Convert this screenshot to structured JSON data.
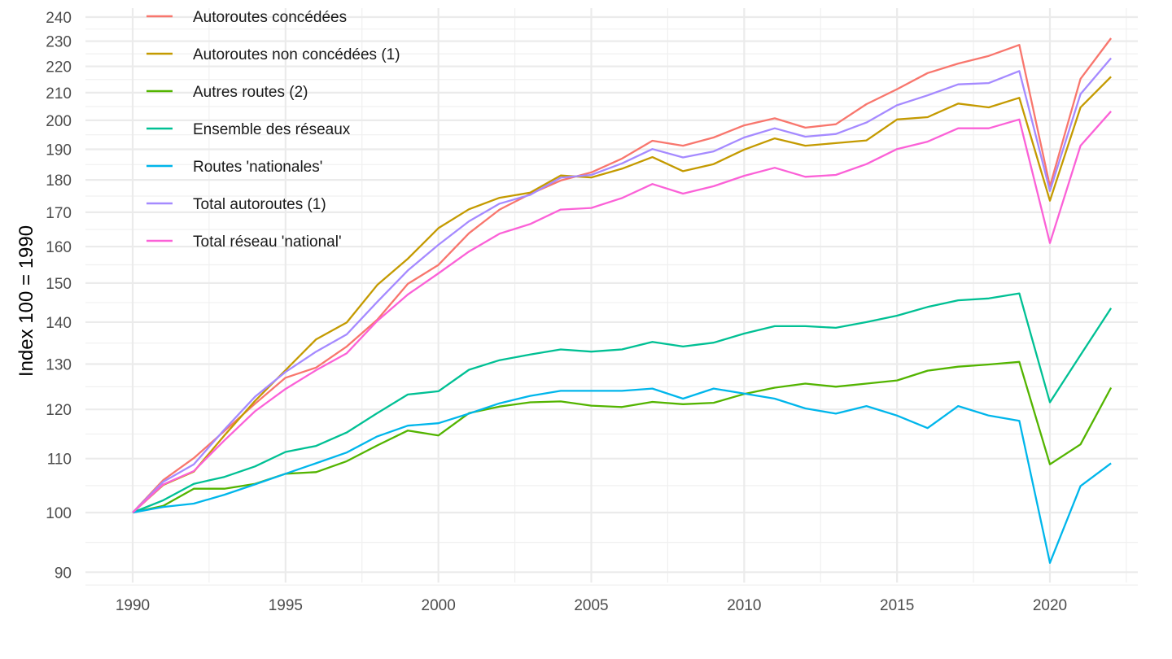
{
  "chart_data": {
    "type": "line",
    "title": "",
    "xlabel": "",
    "ylabel": "Index 100 = 1990",
    "yscale": "log",
    "xlim": [
      1988.5,
      2023.5
    ],
    "ylim": [
      87,
      243
    ],
    "grid": true,
    "legend_position": "top-left",
    "x_ticks": [
      "1990",
      "1995",
      "2000",
      "2005",
      "2010",
      "2015",
      "2020"
    ],
    "y_ticks": [
      "90",
      "100",
      "110",
      "120",
      "130",
      "140",
      "150",
      "160",
      "170",
      "180",
      "190",
      "200",
      "210",
      "220",
      "230",
      "240"
    ],
    "x": [
      1990,
      1991,
      1992,
      1993,
      1994,
      1995,
      1996,
      1997,
      1998,
      1999,
      2000,
      2001,
      2002,
      2003,
      2004,
      2005,
      2006,
      2007,
      2008,
      2009,
      2010,
      2011,
      2012,
      2013,
      2014,
      2015,
      2016,
      2017,
      2018,
      2019,
      2020,
      2021,
      2022
    ],
    "series": [
      {
        "name": "Autoroutes concédées",
        "color": "#F8766D",
        "values": [
          100,
          105.9,
          110.1,
          115.5,
          121.2,
          126.9,
          129.2,
          134.1,
          140.6,
          149.8,
          154.9,
          163.8,
          170.8,
          175.6,
          179.8,
          182.4,
          186.9,
          192.9,
          191.2,
          194.0,
          198.2,
          200.7,
          197.4,
          198.6,
          205.8,
          211.3,
          217.4,
          221.1,
          224.1,
          228.5,
          178.0,
          215.2,
          231.2
        ]
      },
      {
        "name": "Autoroutes non concédées (1)",
        "color": "#C49A00",
        "values": [
          100,
          105.0,
          107.5,
          114.6,
          121.8,
          128.6,
          135.8,
          139.9,
          149.5,
          156.6,
          165.3,
          170.9,
          174.4,
          176.0,
          181.4,
          180.8,
          183.6,
          187.4,
          182.8,
          185.1,
          189.9,
          193.7,
          191.2,
          192.1,
          193.0,
          200.3,
          201.1,
          206.0,
          204.6,
          208.1,
          173.5,
          204.6,
          216.0
        ]
      },
      {
        "name": "Autres routes (2)",
        "color": "#53B400",
        "values": [
          100,
          101.2,
          104.3,
          104.3,
          105.2,
          107.1,
          107.4,
          109.5,
          112.6,
          115.6,
          114.6,
          119.2,
          120.6,
          121.5,
          121.7,
          120.8,
          120.5,
          121.6,
          121.1,
          121.4,
          123.3,
          124.7,
          125.6,
          124.9,
          125.6,
          126.3,
          128.5,
          129.4,
          129.9,
          130.5,
          108.9,
          112.8,
          124.7
        ]
      },
      {
        "name": "Ensemble des réseaux",
        "color": "#00C094",
        "values": [
          100,
          102.2,
          105.2,
          106.5,
          108.5,
          111.3,
          112.5,
          115.2,
          119.2,
          123.2,
          123.9,
          128.7,
          130.9,
          132.2,
          133.4,
          132.9,
          133.4,
          135.2,
          134.1,
          135.0,
          137.2,
          139.0,
          139.0,
          138.6,
          140.0,
          141.6,
          143.8,
          145.5,
          146.0,
          147.3,
          121.5,
          132.1,
          143.5
        ]
      },
      {
        "name": "Routes 'nationales'",
        "color": "#00B6EB",
        "values": [
          100,
          101.0,
          101.6,
          103.2,
          105.1,
          107.1,
          109.1,
          111.2,
          114.4,
          116.6,
          117.1,
          119.1,
          121.3,
          122.9,
          124.0,
          124.0,
          124.0,
          124.5,
          122.3,
          124.5,
          123.4,
          122.3,
          120.2,
          119.1,
          120.7,
          118.7,
          116.1,
          120.7,
          118.7,
          117.6,
          91.5,
          104.8,
          109.1
        ]
      },
      {
        "name": "Total autoroutes (1)",
        "color": "#A58AFF",
        "values": [
          100,
          105.6,
          108.9,
          115.8,
          122.7,
          128.2,
          132.9,
          137.0,
          145.1,
          153.4,
          160.5,
          167.3,
          172.6,
          175.3,
          180.7,
          181.6,
          185.3,
          190.1,
          187.3,
          189.3,
          194.0,
          197.2,
          194.3,
          195.2,
          199.2,
          205.4,
          209.0,
          213.1,
          213.6,
          218.2,
          176.5,
          209.5,
          223.2
        ]
      },
      {
        "name": "Total réseau 'national'",
        "color": "#FB61D7",
        "values": [
          100,
          105.1,
          107.6,
          113.6,
          119.6,
          124.4,
          128.6,
          132.5,
          140.3,
          147.0,
          152.6,
          158.6,
          163.7,
          166.5,
          170.8,
          171.3,
          174.3,
          178.7,
          175.7,
          178.0,
          181.3,
          183.9,
          181.0,
          181.6,
          185.1,
          190.1,
          192.6,
          197.2,
          197.2,
          200.3,
          161.0,
          191.2,
          203.2
        ]
      }
    ]
  }
}
